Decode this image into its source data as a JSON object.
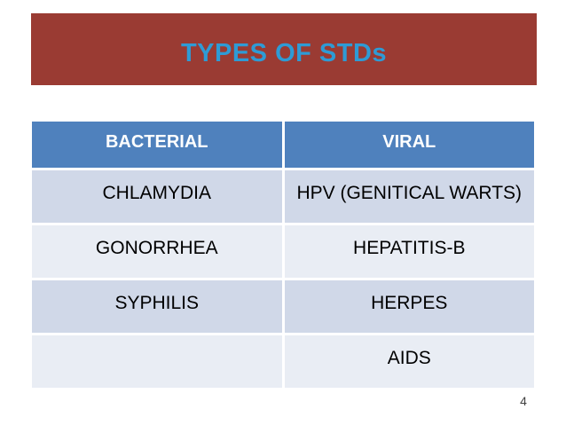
{
  "title_bar": {
    "title": "TYPES OF STDs"
  },
  "table": {
    "headers": [
      "BACTERIAL",
      "VIRAL"
    ],
    "rows": [
      [
        "CHLAMYDIA",
        "HPV (GENITICAL WARTS)"
      ],
      [
        "GONORRHEA",
        "HEPATITIS-B"
      ],
      [
        "SYPHILIS",
        "HERPES"
      ],
      [
        "",
        "AIDS"
      ]
    ]
  },
  "footer": {
    "page_number": "4"
  },
  "colors": {
    "title_bar_bg": "#9A3B33",
    "title_text": "#2E9BD5",
    "table_header_bg": "#4F81BD",
    "table_header_text": "#FFFFFF",
    "row_band_dark": "#D0D8E8",
    "row_band_light": "#E9EDF4",
    "cell_text": "#000000",
    "page_number_text": "#404040",
    "slide_bg": "#FFFFFF"
  }
}
